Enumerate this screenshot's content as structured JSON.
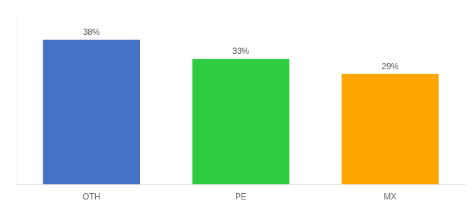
{
  "chart_data": {
    "type": "bar",
    "categories": [
      "OTH",
      "PE",
      "MX"
    ],
    "values": [
      38,
      33,
      29
    ],
    "value_labels": [
      "38%",
      "33%",
      "29%"
    ],
    "colors": [
      "#4472C4",
      "#2ECC40",
      "#FFA500"
    ],
    "ylim": [
      0,
      44
    ],
    "data_labels": true,
    "tick_labels": "x",
    "grid": false
  }
}
